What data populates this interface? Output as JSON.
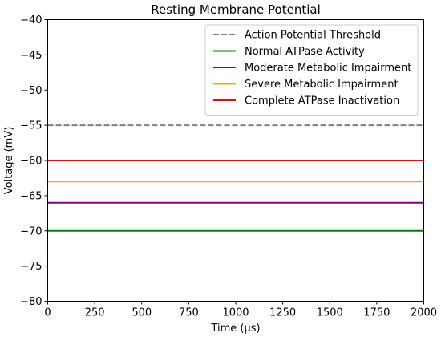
{
  "chart_data": {
    "type": "line",
    "title": "Resting Membrane Potential",
    "xlabel": "Time (μs)",
    "ylabel": "Voltage (mV)",
    "xlim": [
      0,
      2000
    ],
    "ylim": [
      -80,
      -40
    ],
    "xticks": [
      0,
      250,
      500,
      750,
      1000,
      1250,
      1500,
      1750,
      2000
    ],
    "yticks": [
      -80,
      -75,
      -70,
      -65,
      -60,
      -55,
      -50,
      -45,
      -40
    ],
    "xtick_labels": [
      "0",
      "250",
      "500",
      "750",
      "1000",
      "1250",
      "1500",
      "1750",
      "2000"
    ],
    "ytick_labels": [
      "−80",
      "−75",
      "−70",
      "−65",
      "−60",
      "−55",
      "−50",
      "−45",
      "−40"
    ],
    "grid": false,
    "legend_position": "top-right",
    "series": [
      {
        "name": "Action Potential Threshold",
        "x": [
          0,
          2000
        ],
        "y": [
          -55,
          -55
        ],
        "color": "#808080",
        "dashed": true
      },
      {
        "name": "Normal ATPase Activity",
        "x": [
          0,
          2000
        ],
        "y": [
          -70,
          -70
        ],
        "color": "#008000",
        "dashed": false
      },
      {
        "name": "Moderate Metabolic Impairment",
        "x": [
          0,
          2000
        ],
        "y": [
          -66,
          -66
        ],
        "color": "#800080",
        "dashed": false
      },
      {
        "name": "Severe Metabolic Impairment",
        "x": [
          0,
          2000
        ],
        "y": [
          -63,
          -63
        ],
        "color": "#ffa500",
        "dashed": false
      },
      {
        "name": "Complete ATPase Inactivation",
        "x": [
          0,
          2000
        ],
        "y": [
          -60,
          -60
        ],
        "color": "#ff0000",
        "dashed": false
      }
    ]
  }
}
